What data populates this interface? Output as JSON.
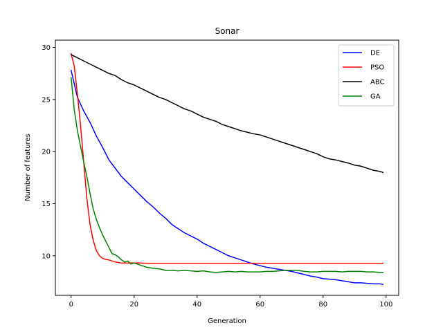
{
  "chart_data": {
    "type": "line",
    "title": "Sonar",
    "xlabel": "Generation",
    "ylabel": "Number of features",
    "xlim": [
      -5,
      104
    ],
    "ylim": [
      6.2,
      30.7
    ],
    "xticks": [
      0,
      20,
      40,
      60,
      80,
      100
    ],
    "yticks": [
      10,
      15,
      20,
      25,
      30
    ],
    "grid": false,
    "legend_position": "top-right",
    "series": [
      {
        "name": "DE",
        "color": "#0000ff",
        "x": [
          0,
          2,
          4,
          6,
          8,
          10,
          12,
          14,
          16,
          18,
          20,
          22,
          24,
          26,
          28,
          30,
          32,
          34,
          36,
          38,
          40,
          42,
          44,
          46,
          48,
          50,
          52,
          54,
          56,
          58,
          60,
          62,
          64,
          66,
          68,
          70,
          72,
          74,
          76,
          78,
          80,
          82,
          84,
          86,
          88,
          90,
          92,
          94,
          96,
          98,
          99
        ],
        "y": [
          27.8,
          25.2,
          23.9,
          22.8,
          21.5,
          20.4,
          19.2,
          18.4,
          17.6,
          17.0,
          16.4,
          15.8,
          15.2,
          14.7,
          14.1,
          13.6,
          13.0,
          12.6,
          12.2,
          11.9,
          11.6,
          11.2,
          10.9,
          10.6,
          10.3,
          10.0,
          9.8,
          9.6,
          9.4,
          9.2,
          9.05,
          8.9,
          8.8,
          8.7,
          8.6,
          8.5,
          8.35,
          8.2,
          8.05,
          7.95,
          7.8,
          7.75,
          7.7,
          7.6,
          7.5,
          7.4,
          7.4,
          7.35,
          7.3,
          7.3,
          7.25
        ]
      },
      {
        "name": "PSO",
        "color": "#ff0000",
        "x": [
          0,
          1,
          2,
          3,
          4,
          5,
          6,
          7,
          8,
          9,
          10,
          11,
          12,
          13,
          14,
          15,
          16,
          18,
          20,
          22,
          24,
          26,
          28,
          30,
          35,
          40,
          45,
          50,
          55,
          60,
          65,
          70,
          75,
          80,
          85,
          90,
          95,
          99
        ],
        "y": [
          29.4,
          28.2,
          25.5,
          22.5,
          19.0,
          15.5,
          13.0,
          11.5,
          10.5,
          10.0,
          9.75,
          9.65,
          9.6,
          9.5,
          9.4,
          9.35,
          9.3,
          9.3,
          9.3,
          9.3,
          9.28,
          9.28,
          9.28,
          9.28,
          9.28,
          9.28,
          9.28,
          9.28,
          9.28,
          9.28,
          9.28,
          9.28,
          9.28,
          9.28,
          9.28,
          9.28,
          9.28,
          9.28
        ]
      },
      {
        "name": "ABC",
        "color": "#000000",
        "x": [
          0,
          2,
          4,
          6,
          8,
          10,
          12,
          14,
          16,
          18,
          20,
          22,
          24,
          26,
          28,
          30,
          32,
          34,
          36,
          38,
          40,
          42,
          44,
          46,
          48,
          50,
          52,
          54,
          56,
          58,
          60,
          62,
          64,
          66,
          68,
          70,
          72,
          74,
          76,
          78,
          80,
          82,
          84,
          86,
          88,
          90,
          92,
          94,
          96,
          98,
          99
        ],
        "y": [
          29.3,
          29.0,
          28.7,
          28.4,
          28.1,
          27.8,
          27.5,
          27.3,
          26.9,
          26.6,
          26.4,
          26.1,
          25.8,
          25.5,
          25.2,
          25.0,
          24.7,
          24.4,
          24.1,
          23.9,
          23.6,
          23.3,
          23.1,
          22.9,
          22.6,
          22.4,
          22.2,
          22.0,
          21.85,
          21.7,
          21.6,
          21.4,
          21.2,
          21.0,
          20.8,
          20.6,
          20.4,
          20.2,
          20.0,
          19.8,
          19.5,
          19.3,
          19.2,
          19.05,
          18.9,
          18.7,
          18.6,
          18.4,
          18.2,
          18.1,
          18.0
        ]
      },
      {
        "name": "GA",
        "color": "#008000",
        "x": [
          0,
          1,
          2,
          3,
          4,
          5,
          6,
          7,
          8,
          9,
          10,
          11,
          12,
          13,
          14,
          15,
          16,
          17,
          18,
          19,
          20,
          22,
          24,
          26,
          28,
          30,
          32,
          34,
          36,
          38,
          40,
          42,
          44,
          46,
          48,
          50,
          52,
          54,
          56,
          58,
          60,
          62,
          64,
          66,
          68,
          70,
          72,
          74,
          76,
          78,
          80,
          82,
          84,
          86,
          88,
          90,
          92,
          94,
          96,
          98,
          99
        ],
        "y": [
          27.1,
          24.0,
          22.0,
          20.5,
          19.0,
          17.6,
          16.0,
          14.5,
          13.5,
          12.7,
          12.0,
          11.4,
          10.8,
          10.2,
          10.1,
          9.9,
          9.6,
          9.4,
          9.5,
          9.2,
          9.3,
          9.1,
          8.9,
          8.8,
          8.75,
          8.6,
          8.6,
          8.55,
          8.6,
          8.55,
          8.5,
          8.55,
          8.45,
          8.4,
          8.45,
          8.5,
          8.45,
          8.5,
          8.45,
          8.45,
          8.45,
          8.5,
          8.5,
          8.55,
          8.6,
          8.6,
          8.6,
          8.5,
          8.45,
          8.45,
          8.5,
          8.5,
          8.5,
          8.45,
          8.5,
          8.5,
          8.5,
          8.45,
          8.45,
          8.4,
          8.4
        ]
      }
    ]
  }
}
